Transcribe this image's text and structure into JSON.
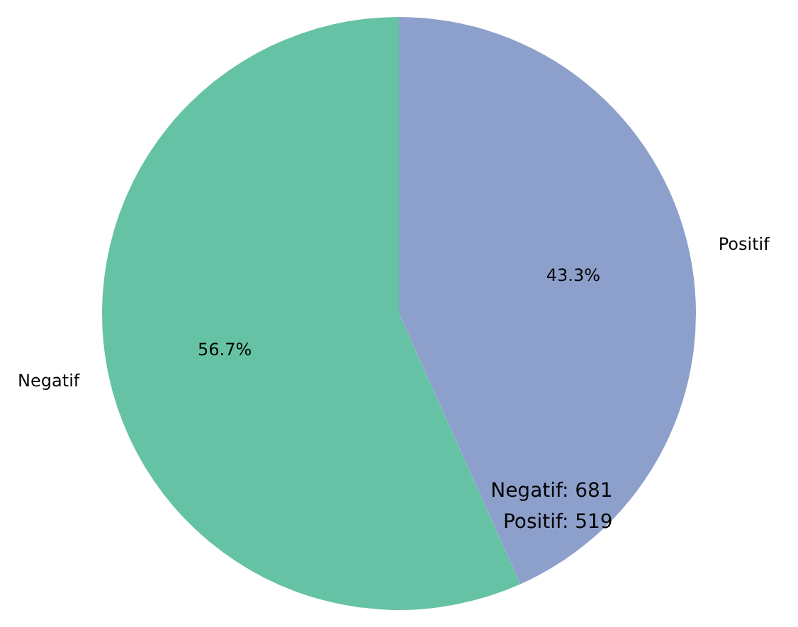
{
  "chart_data": {
    "type": "pie",
    "categories": [
      "Negatif",
      "Positif"
    ],
    "values": [
      56.7,
      43.3
    ],
    "colors": [
      "#66c2a5",
      "#8da0cb"
    ],
    "value_labels": [
      "56.7%",
      "43.3%"
    ],
    "legend": false,
    "annotations": [
      "Negatif: 681",
      "Positif: 519"
    ]
  }
}
